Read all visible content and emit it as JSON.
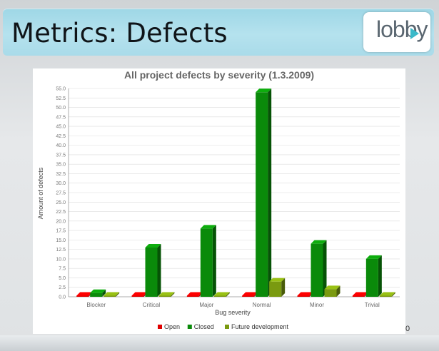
{
  "slide": {
    "title": "Metrics: Defects",
    "logo_text": "lobby",
    "page_number": "0"
  },
  "colors": {
    "open": "#e00000",
    "closed": "#0a8a0a",
    "future": "#7a9a10",
    "accent": "#3bb9c9"
  },
  "chart_data": {
    "type": "bar",
    "title": "All project defects by severity (1.3.2009)",
    "xlabel": "Bug severity",
    "ylabel": "Amount of defects",
    "ylim": [
      0,
      55
    ],
    "yticks": [
      "0.0",
      "2.5",
      "5.0",
      "7.5",
      "10.0",
      "12.5",
      "15.0",
      "17.5",
      "20.0",
      "22.5",
      "25.0",
      "27.5",
      "30.0",
      "32.5",
      "35.0",
      "37.5",
      "40.0",
      "42.5",
      "45.0",
      "47.5",
      "50.0",
      "52.5",
      "55.0"
    ],
    "categories": [
      "Blocker",
      "Critical",
      "Major",
      "Normal",
      "Minor",
      "Trivial"
    ],
    "series": [
      {
        "name": "Open",
        "values": [
          0,
          0,
          0,
          0,
          0,
          0
        ]
      },
      {
        "name": "Closed",
        "values": [
          1,
          13,
          18,
          54,
          14,
          10
        ]
      },
      {
        "name": "Future development",
        "values": [
          0,
          0,
          0,
          4,
          2,
          0
        ]
      }
    ],
    "grid": true,
    "legend": "bottom"
  }
}
